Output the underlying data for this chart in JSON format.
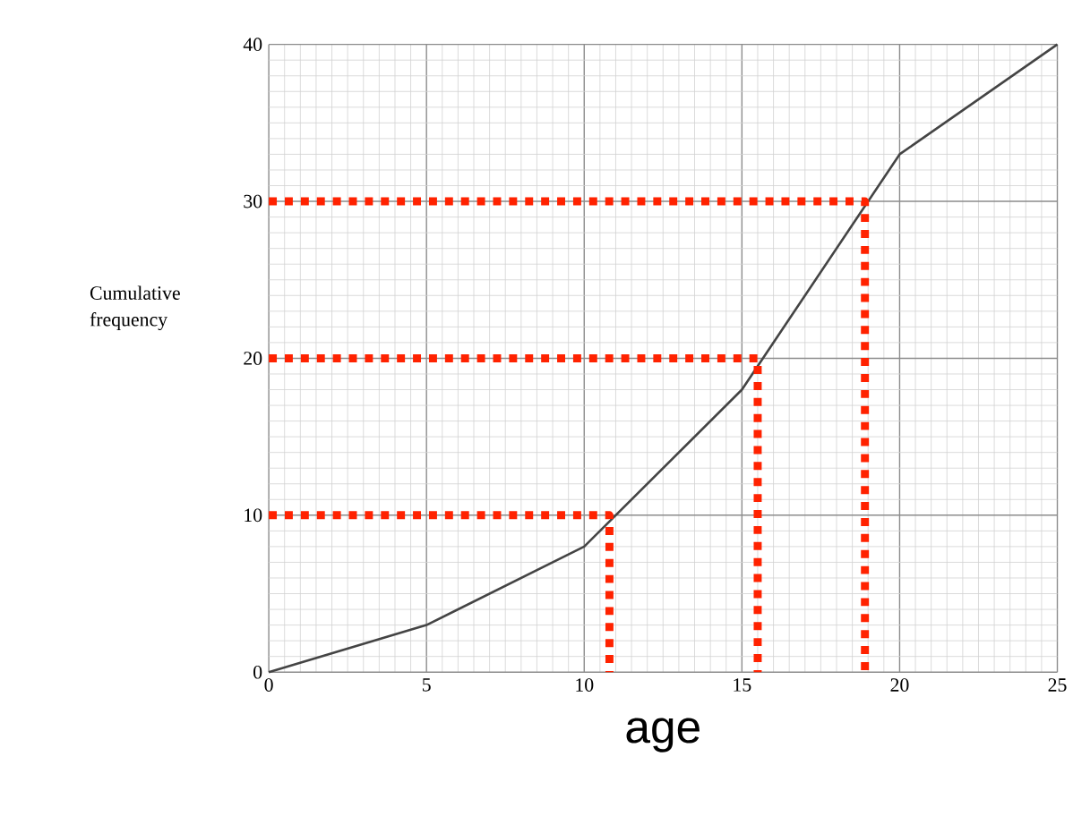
{
  "chart_data": {
    "type": "line",
    "xlabel": "age",
    "ylabel": "Cumulative frequency",
    "xlim": [
      0,
      25
    ],
    "ylim": [
      0,
      40
    ],
    "xticks": [
      0,
      5,
      10,
      15,
      20,
      25
    ],
    "yticks": [
      0,
      10,
      20,
      30,
      40
    ],
    "grid": true,
    "marker": "none",
    "line_style": "solid",
    "series": [
      {
        "color": "#444444",
        "x": [
          0,
          5,
          10,
          15,
          20,
          25
        ],
        "values": [
          0,
          3,
          8,
          18,
          33,
          40
        ]
      },
      {
        "color": "#ff2200",
        "line_style": "dotted",
        "x": [
          0,
          10.8,
          10.8
        ],
        "values": [
          10,
          10,
          0
        ]
      },
      {
        "color": "#ff2200",
        "line_style": "dotted",
        "x": [
          0,
          15.5,
          15.5
        ],
        "values": [
          20,
          20,
          0
        ]
      },
      {
        "color": "#ff2200",
        "line_style": "dotted",
        "x": [
          0,
          18.9,
          18.9
        ],
        "values": [
          30,
          30,
          0
        ]
      }
    ]
  }
}
